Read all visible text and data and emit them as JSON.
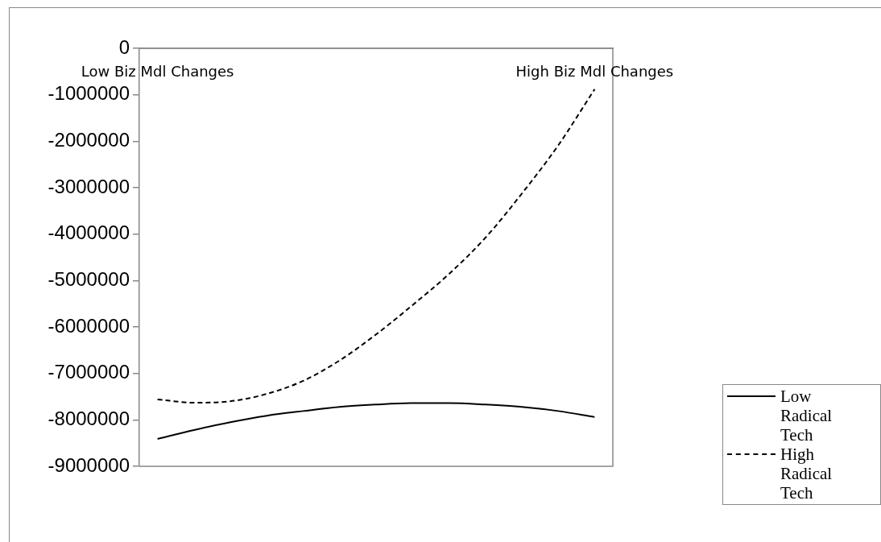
{
  "chart_data": {
    "type": "line",
    "categories": [
      "Low Biz Mdl Changes",
      null,
      null,
      null,
      null,
      null,
      null,
      null,
      null,
      null,
      null,
      null,
      "High Biz Mdl Changes"
    ],
    "series": [
      {
        "name": "Low Radical Tech",
        "color": "#000000",
        "line_style": "solid",
        "values": [
          -8410000,
          -8220000,
          -8050000,
          -7910000,
          -7810000,
          -7720000,
          -7670000,
          -7640000,
          -7640000,
          -7670000,
          -7720000,
          -7810000,
          -7940000
        ]
      },
      {
        "name": "High Radical Tech",
        "color": "#000000",
        "line_style": "dashed",
        "values": [
          -7560000,
          -7630000,
          -7600000,
          -7440000,
          -7160000,
          -6720000,
          -6160000,
          -5530000,
          -4860000,
          -4080000,
          -3130000,
          -2090000,
          -880000
        ]
      }
    ],
    "ylim": [
      -9000000,
      0
    ],
    "yticks": [
      0,
      -1000000,
      -2000000,
      -3000000,
      -4000000,
      -5000000,
      -6000000,
      -7000000,
      -8000000,
      -9000000
    ],
    "legend": "right",
    "marker": "none"
  }
}
